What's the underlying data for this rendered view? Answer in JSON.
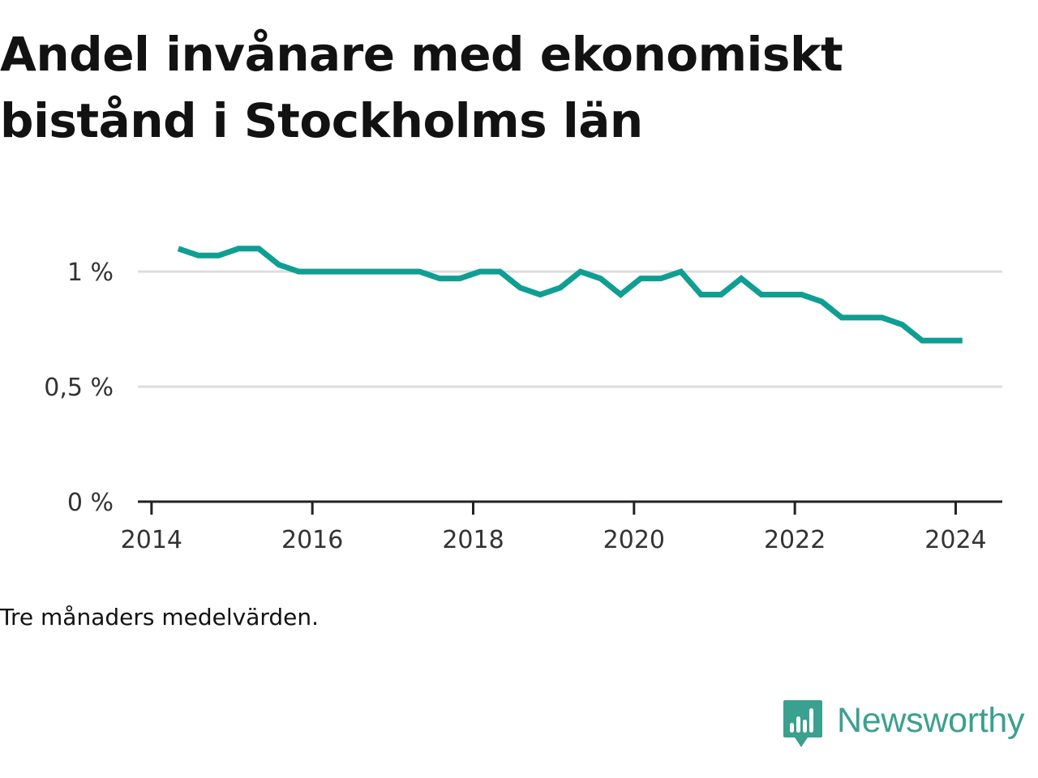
{
  "header": {
    "title_line1": "Andel invånare med ekonomiskt",
    "title_line2": "bistånd i Stockholms län"
  },
  "footer": {
    "note": "Tre månaders medelvärden.",
    "brand": "Newsworthy"
  },
  "colors": {
    "line": "#0f9e92",
    "grid": "#dddddd",
    "axis": "#222222",
    "brand": "#3aa08f"
  },
  "icons": [
    "newsworthy-logo-icon"
  ],
  "chart_data": {
    "type": "line",
    "title": "Andel invånare med ekonomiskt bistånd i Stockholms län",
    "xlabel": "",
    "ylabel": "",
    "xlim": [
      2013.83,
      2024.58
    ],
    "ylim": [
      0,
      1.3
    ],
    "x_ticks": [
      2014,
      2016,
      2018,
      2020,
      2022,
      2024
    ],
    "x_tick_labels": [
      "2014",
      "2016",
      "2018",
      "2020",
      "2022",
      "2024"
    ],
    "y_ticks": [
      0,
      0.5,
      1
    ],
    "y_tick_labels": [
      "0 %",
      "0,5 %",
      "1 %"
    ],
    "grid": true,
    "series": [
      {
        "x": [
          "2014-05",
          "2014-08",
          "2014-11",
          "2015-02",
          "2015-05",
          "2015-08",
          "2015-11",
          "2016-02",
          "2016-05",
          "2016-08",
          "2016-11",
          "2017-02",
          "2017-05",
          "2017-08",
          "2017-11",
          "2018-02",
          "2018-05",
          "2018-08",
          "2018-11",
          "2019-02",
          "2019-05",
          "2019-08",
          "2019-11",
          "2020-02",
          "2020-05",
          "2020-08",
          "2020-11",
          "2021-02",
          "2021-05",
          "2021-08",
          "2021-11",
          "2022-02",
          "2022-05",
          "2022-08",
          "2022-11",
          "2023-02",
          "2023-05",
          "2023-08",
          "2023-11",
          "2024-02"
        ],
        "values": [
          1.1,
          1.07,
          1.07,
          1.1,
          1.1,
          1.03,
          1.0,
          1.0,
          1.0,
          1.0,
          1.0,
          1.0,
          1.0,
          0.97,
          0.97,
          1.0,
          1.0,
          0.93,
          0.9,
          0.93,
          1.0,
          0.97,
          0.9,
          0.97,
          0.97,
          1.0,
          0.9,
          0.9,
          0.97,
          0.9,
          0.9,
          0.9,
          0.87,
          0.8,
          0.8,
          0.8,
          0.77,
          0.7,
          0.7,
          0.7
        ]
      }
    ]
  }
}
